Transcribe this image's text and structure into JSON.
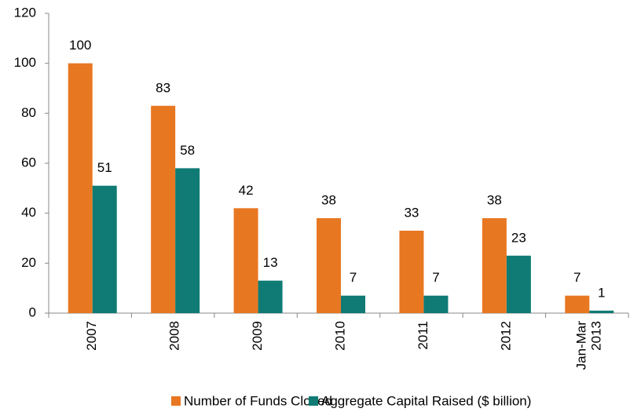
{
  "chart_data": {
    "type": "bar",
    "categories": [
      "2007",
      "2008",
      "2009",
      "2010",
      "2011",
      "2012",
      "Jan-Mar 2013"
    ],
    "series": [
      {
        "name": "Number of Funds Closed",
        "color": "#e87722",
        "values": [
          100,
          83,
          42,
          38,
          33,
          38,
          7
        ]
      },
      {
        "name": "Aggregate Capital Raised ($ billion)",
        "color": "#0f7b74",
        "values": [
          51,
          58,
          13,
          7,
          7,
          23,
          1
        ]
      }
    ],
    "ylim": [
      0,
      120
    ],
    "yticks": [
      0,
      20,
      40,
      60,
      80,
      100,
      120
    ],
    "grid": false,
    "legend": "bottom"
  }
}
